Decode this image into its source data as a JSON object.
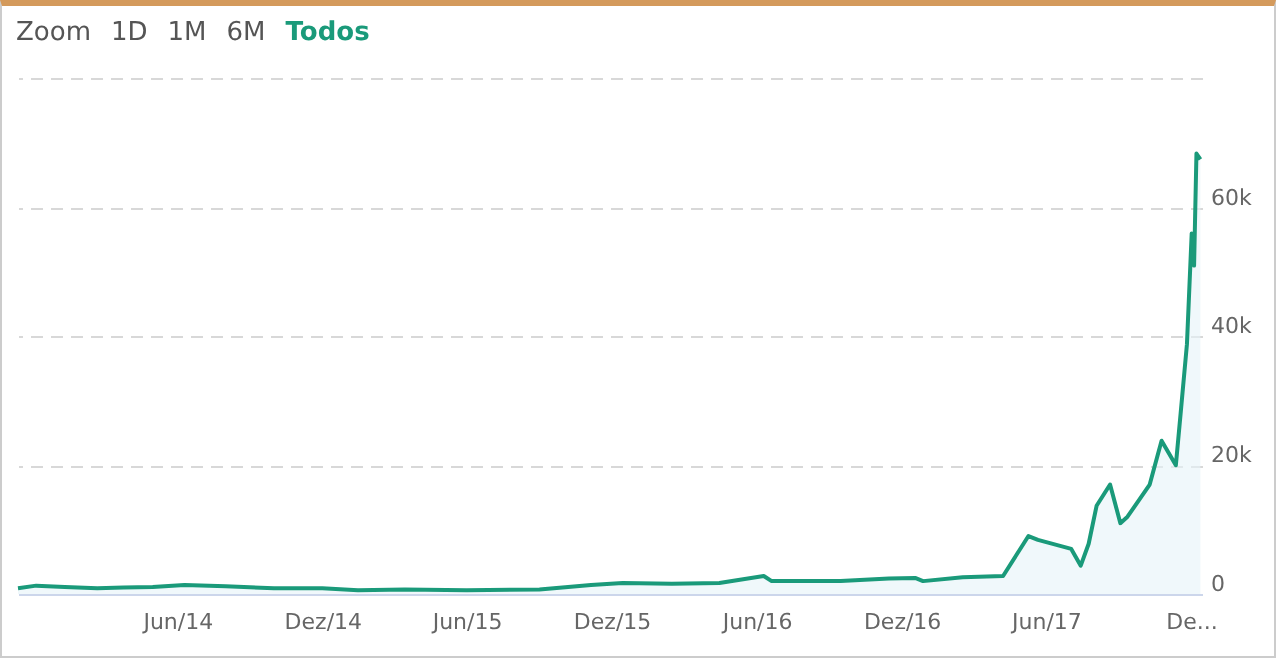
{
  "chart_data": {
    "type": "area",
    "annotations": [
      "Zoom",
      "1D",
      "1M",
      "6M",
      "Todos"
    ],
    "x": [
      "2013-11-12",
      "2013-12-05",
      "2014-01-10",
      "2014-02-20",
      "2014-03-25",
      "2014-05-01",
      "2014-06-10",
      "2014-08-01",
      "2014-10-01",
      "2014-12-01",
      "2015-01-15",
      "2015-03-15",
      "2015-06-01",
      "2015-09-01",
      "2015-11-05",
      "2015-12-15",
      "2016-02-15",
      "2016-04-15",
      "2016-06-10",
      "2016-06-20",
      "2016-07-15",
      "2016-09-15",
      "2016-11-15",
      "2016-12-18",
      "2016-12-28",
      "2017-02-16",
      "2017-04-08",
      "2017-05-10",
      "2017-05-22",
      "2017-07-03",
      "2017-07-15",
      "2017-07-25",
      "2017-08-04",
      "2017-08-21",
      "2017-09-03",
      "2017-09-12",
      "2017-10-10",
      "2017-10-25",
      "2017-11-12",
      "2017-11-18",
      "2017-11-26",
      "2017-12-02",
      "2017-12-05",
      "2017-12-08",
      "2017-12-13"
    ],
    "series": [
      {
        "color": "#1a9a7a",
        "values": [
          900,
          1300,
          1100,
          900,
          1000,
          1100,
          1400,
          1200,
          900,
          900,
          600,
          700,
          600,
          700,
          1400,
          1700,
          1600,
          1700,
          2800,
          2000,
          2000,
          2000,
          2400,
          2500,
          2000,
          2600,
          2800,
          9000,
          8400,
          7000,
          4400,
          7800,
          13700,
          17000,
          11000,
          12000,
          17000,
          23800,
          20000,
          28000,
          38800,
          56000,
          51000,
          68400,
          67500
        ]
      }
    ],
    "xlim": [
      "2013-11-12",
      "2017-12-15"
    ],
    "xticks": [
      {
        "value": "2014-06-01",
        "label": "Jun/14"
      },
      {
        "value": "2014-12-01",
        "label": "Dez/14"
      },
      {
        "value": "2015-06-01",
        "label": "Jun/15"
      },
      {
        "value": "2015-12-01",
        "label": "Dez/15"
      },
      {
        "value": "2016-06-01",
        "label": "Jun/16"
      },
      {
        "value": "2016-12-01",
        "label": "Dez/16"
      },
      {
        "value": "2017-06-01",
        "label": "Jun/17"
      },
      {
        "value": "2017-12-01",
        "label": "De..."
      }
    ],
    "ylim": [
      0,
      82000
    ],
    "yticks": [
      0,
      {
        "value": 20000,
        "label": "20k"
      },
      {
        "value": 40000,
        "label": "40k"
      },
      {
        "value": 60000,
        "label": "60k"
      },
      {
        "value": 80000,
        "label": null
      }
    ],
    "grid": "y"
  }
}
